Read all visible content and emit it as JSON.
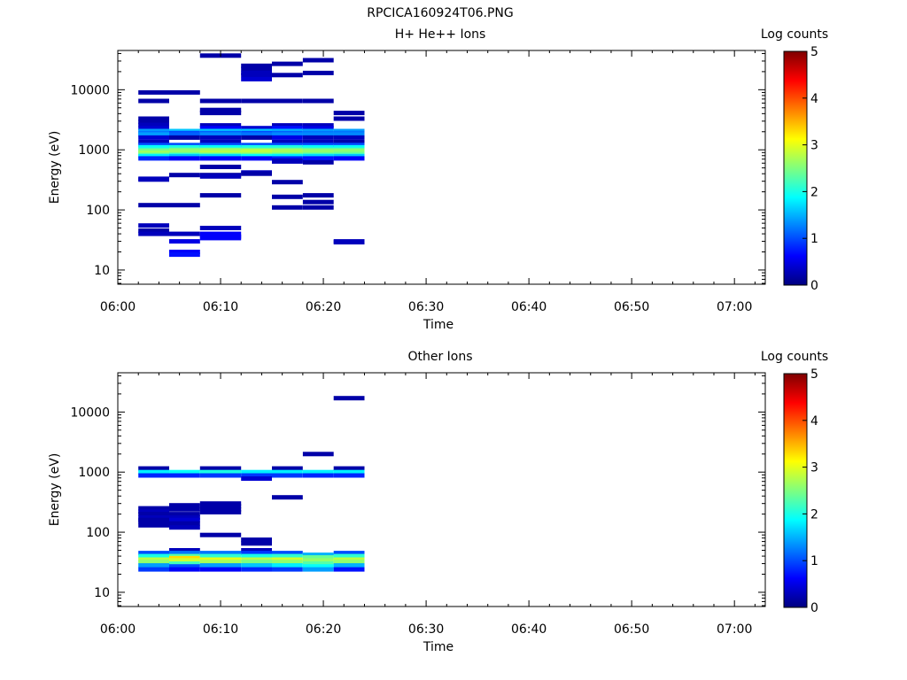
{
  "figure_title": "RPCICA160924T06.PNG",
  "colors": {
    "axis": "#000000",
    "background": "#ffffff"
  },
  "colormap": [
    "#00007f",
    "#0000ff",
    "#007fff",
    "#00ffff",
    "#7fff7f",
    "#ffff00",
    "#ff7f00",
    "#ff0000",
    "#7f0000"
  ],
  "chart_data": [
    {
      "type": "heatmap",
      "title": "H+ He++ Ions",
      "xlabel": "Time",
      "ylabel": "Energy (eV)",
      "yscale": "log",
      "ylim": [
        5.8,
        45000
      ],
      "xlim": [
        "06:00",
        "07:03"
      ],
      "xticks": [
        "06:00",
        "06:10",
        "06:20",
        "06:30",
        "06:40",
        "06:50",
        "07:00"
      ],
      "yticks": [
        {
          "value": 10,
          "label": "10"
        },
        {
          "value": 100,
          "label": "100"
        },
        {
          "value": 1000,
          "label": "1000"
        },
        {
          "value": 10000,
          "label": "10000"
        }
      ],
      "colorbar": {
        "label": "Log counts",
        "range": [
          0,
          5
        ],
        "ticks": [
          "0",
          "1",
          "2",
          "3",
          "4",
          "5"
        ]
      },
      "grid": false,
      "time_bins": [
        [
          "06:02",
          "06:05"
        ],
        [
          "06:05",
          "06:08"
        ],
        [
          "06:08",
          "06:12"
        ],
        [
          "06:12",
          "06:15"
        ],
        [
          "06:15",
          "06:18"
        ],
        [
          "06:18",
          "06:21"
        ],
        [
          "06:21",
          "06:24"
        ]
      ],
      "cells": [
        [
          0,
          9000,
          0.2
        ],
        [
          0,
          6500,
          0.2
        ],
        [
          0,
          3300,
          0.2
        ],
        [
          0,
          2900,
          0.2
        ],
        [
          0,
          2600,
          0.3
        ],
        [
          0,
          2300,
          0.4
        ],
        [
          0,
          2050,
          1.4
        ],
        [
          0,
          1900,
          1.2
        ],
        [
          0,
          1800,
          1.4
        ],
        [
          0,
          1600,
          0.4
        ],
        [
          0,
          1350,
          0.3
        ],
        [
          0,
          1200,
          1.0
        ],
        [
          0,
          1100,
          1.9
        ],
        [
          0,
          1000,
          2.2
        ],
        [
          0,
          950,
          2.5
        ],
        [
          0,
          880,
          2.7
        ],
        [
          0,
          820,
          2.3
        ],
        [
          0,
          780,
          1.8
        ],
        [
          0,
          720,
          0.8
        ],
        [
          0,
          330,
          0.3
        ],
        [
          0,
          320,
          0.3
        ],
        [
          0,
          120,
          0.2
        ],
        [
          0,
          55,
          0.3
        ],
        [
          0,
          45,
          0.2
        ],
        [
          0,
          40,
          0.3
        ],
        [
          1,
          9000,
          0.2
        ],
        [
          1,
          2050,
          1.6
        ],
        [
          1,
          1900,
          1.0
        ],
        [
          1,
          1800,
          1.1
        ],
        [
          1,
          1600,
          0.2
        ],
        [
          1,
          1200,
          1.0
        ],
        [
          1,
          1100,
          2.0
        ],
        [
          1,
          1000,
          2.4
        ],
        [
          1,
          950,
          2.6
        ],
        [
          1,
          880,
          2.6
        ],
        [
          1,
          820,
          2.1
        ],
        [
          1,
          780,
          1.6
        ],
        [
          1,
          720,
          0.6
        ],
        [
          1,
          380,
          0.2
        ],
        [
          1,
          120,
          0.2
        ],
        [
          1,
          40,
          0.3
        ],
        [
          1,
          30,
          0.5
        ],
        [
          1,
          20,
          0.6
        ],
        [
          1,
          18,
          0.7
        ],
        [
          2,
          37000,
          0.2
        ],
        [
          2,
          6500,
          0.2
        ],
        [
          2,
          4600,
          0.2
        ],
        [
          2,
          4100,
          0.2
        ],
        [
          2,
          2550,
          0.3
        ],
        [
          2,
          2300,
          0.6
        ],
        [
          2,
          2050,
          1.6
        ],
        [
          2,
          1900,
          1.1
        ],
        [
          2,
          1800,
          1.3
        ],
        [
          2,
          1600,
          0.3
        ],
        [
          2,
          1350,
          0.3
        ],
        [
          2,
          1200,
          1.0
        ],
        [
          2,
          1100,
          1.9
        ],
        [
          2,
          1000,
          2.5
        ],
        [
          2,
          950,
          2.7
        ],
        [
          2,
          880,
          2.8
        ],
        [
          2,
          820,
          2.3
        ],
        [
          2,
          780,
          1.7
        ],
        [
          2,
          720,
          0.6
        ],
        [
          2,
          520,
          0.2
        ],
        [
          2,
          380,
          0.2
        ],
        [
          2,
          360,
          0.3
        ],
        [
          2,
          175,
          0.2
        ],
        [
          2,
          50,
          0.3
        ],
        [
          2,
          40,
          0.6
        ],
        [
          2,
          36,
          0.6
        ],
        [
          2,
          34,
          0.6
        ],
        [
          3,
          25000,
          0.2
        ],
        [
          3,
          22000,
          0.2
        ],
        [
          3,
          19000,
          0.3
        ],
        [
          3,
          17500,
          0.3
        ],
        [
          3,
          15000,
          0.4
        ],
        [
          3,
          6500,
          0.2
        ],
        [
          3,
          2300,
          0.4
        ],
        [
          3,
          2050,
          1.6
        ],
        [
          3,
          1900,
          1.0
        ],
        [
          3,
          1800,
          1.2
        ],
        [
          3,
          1600,
          0.2
        ],
        [
          3,
          1200,
          1.0
        ],
        [
          3,
          1100,
          2.0
        ],
        [
          3,
          1000,
          2.4
        ],
        [
          3,
          950,
          2.8
        ],
        [
          3,
          880,
          2.8
        ],
        [
          3,
          820,
          2.4
        ],
        [
          3,
          780,
          1.9
        ],
        [
          3,
          720,
          0.6
        ],
        [
          3,
          420,
          0.3
        ],
        [
          3,
          400,
          0.2
        ],
        [
          4,
          27000,
          0.2
        ],
        [
          4,
          17500,
          0.2
        ],
        [
          4,
          6500,
          0.2
        ],
        [
          4,
          2550,
          0.3
        ],
        [
          4,
          2300,
          0.7
        ],
        [
          4,
          2050,
          1.5
        ],
        [
          4,
          1900,
          1.1
        ],
        [
          4,
          1800,
          1.3
        ],
        [
          4,
          1600,
          0.5
        ],
        [
          4,
          1350,
          0.3
        ],
        [
          4,
          1200,
          1.0
        ],
        [
          4,
          1100,
          2.0
        ],
        [
          4,
          1000,
          2.4
        ],
        [
          4,
          950,
          2.7
        ],
        [
          4,
          880,
          2.7
        ],
        [
          4,
          820,
          2.3
        ],
        [
          4,
          780,
          1.8
        ],
        [
          4,
          720,
          0.8
        ],
        [
          4,
          670,
          0.4
        ],
        [
          4,
          640,
          0.3
        ],
        [
          4,
          290,
          0.2
        ],
        [
          4,
          165,
          0.2
        ],
        [
          4,
          110,
          0.2
        ],
        [
          5,
          31000,
          0.2
        ],
        [
          5,
          19000,
          0.2
        ],
        [
          5,
          6500,
          0.2
        ],
        [
          5,
          2550,
          0.3
        ],
        [
          5,
          2300,
          0.5
        ],
        [
          5,
          2050,
          1.4
        ],
        [
          5,
          1900,
          1.2
        ],
        [
          5,
          1800,
          1.3
        ],
        [
          5,
          1600,
          0.3
        ],
        [
          5,
          1350,
          0.3
        ],
        [
          5,
          1200,
          1.0
        ],
        [
          5,
          1100,
          1.9
        ],
        [
          5,
          1000,
          2.3
        ],
        [
          5,
          950,
          2.6
        ],
        [
          5,
          880,
          2.6
        ],
        [
          5,
          820,
          2.2
        ],
        [
          5,
          780,
          1.7
        ],
        [
          5,
          720,
          0.7
        ],
        [
          5,
          620,
          0.2
        ],
        [
          5,
          175,
          0.2
        ],
        [
          5,
          135,
          0.2
        ],
        [
          5,
          110,
          0.2
        ],
        [
          6,
          4100,
          0.2
        ],
        [
          6,
          3300,
          0.2
        ],
        [
          6,
          2050,
          1.4
        ],
        [
          6,
          1900,
          1.2
        ],
        [
          6,
          1800,
          1.3
        ],
        [
          6,
          1600,
          0.3
        ],
        [
          6,
          1350,
          0.2
        ],
        [
          6,
          1200,
          1.0
        ],
        [
          6,
          1100,
          1.9
        ],
        [
          6,
          1000,
          2.3
        ],
        [
          6,
          950,
          2.6
        ],
        [
          6,
          880,
          2.5
        ],
        [
          6,
          820,
          2.2
        ],
        [
          6,
          780,
          1.6
        ],
        [
          6,
          720,
          0.6
        ],
        [
          6,
          30,
          0.3
        ],
        [
          6,
          29,
          0.3
        ]
      ]
    },
    {
      "type": "heatmap",
      "title": "Other Ions",
      "xlabel": "Time",
      "ylabel": "Energy (eV)",
      "yscale": "log",
      "ylim": [
        5.8,
        45000
      ],
      "xlim": [
        "06:00",
        "07:03"
      ],
      "xticks": [
        "06:00",
        "06:10",
        "06:20",
        "06:30",
        "06:40",
        "06:50",
        "07:00"
      ],
      "yticks": [
        {
          "value": 10,
          "label": "10"
        },
        {
          "value": 100,
          "label": "100"
        },
        {
          "value": 1000,
          "label": "1000"
        },
        {
          "value": 10000,
          "label": "10000"
        }
      ],
      "colorbar": {
        "label": "Log counts",
        "range": [
          0,
          5
        ],
        "ticks": [
          "0",
          "1",
          "2",
          "3",
          "4",
          "5"
        ]
      },
      "grid": false,
      "time_bins": [
        [
          "06:02",
          "06:05"
        ],
        [
          "06:05",
          "06:08"
        ],
        [
          "06:08",
          "06:12"
        ],
        [
          "06:12",
          "06:15"
        ],
        [
          "06:15",
          "06:18"
        ],
        [
          "06:18",
          "06:21"
        ],
        [
          "06:21",
          "06:24"
        ]
      ],
      "cells": [
        [
          0,
          1150,
          0.2
        ],
        [
          0,
          1000,
          1.8
        ],
        [
          0,
          880,
          0.8
        ],
        [
          0,
          250,
          0.2
        ],
        [
          0,
          220,
          0.3
        ],
        [
          0,
          200,
          0.2
        ],
        [
          0,
          175,
          0.3
        ],
        [
          0,
          160,
          0.2
        ],
        [
          0,
          150,
          0.2
        ],
        [
          0,
          130,
          0.2
        ],
        [
          0,
          45,
          1.0
        ],
        [
          0,
          40,
          2.0
        ],
        [
          0,
          35,
          2.8
        ],
        [
          0,
          32,
          2.6
        ],
        [
          0,
          28,
          1.4
        ],
        [
          0,
          24,
          0.9
        ],
        [
          1,
          1000,
          1.9
        ],
        [
          1,
          880,
          0.8
        ],
        [
          1,
          280,
          0.2
        ],
        [
          1,
          240,
          0.2
        ],
        [
          1,
          200,
          0.2
        ],
        [
          1,
          175,
          0.3
        ],
        [
          1,
          160,
          0.4
        ],
        [
          1,
          140,
          0.2
        ],
        [
          1,
          120,
          0.3
        ],
        [
          1,
          50,
          0.3
        ],
        [
          1,
          45,
          1.2
        ],
        [
          1,
          40,
          2.3
        ],
        [
          1,
          37,
          3.3
        ],
        [
          1,
          34,
          2.9
        ],
        [
          1,
          30,
          2.2
        ],
        [
          1,
          27,
          1.0
        ],
        [
          1,
          24,
          0.6
        ],
        [
          2,
          1150,
          0.2
        ],
        [
          2,
          1000,
          2.0
        ],
        [
          2,
          880,
          0.9
        ],
        [
          2,
          300,
          0.2
        ],
        [
          2,
          270,
          0.2
        ],
        [
          2,
          240,
          0.2
        ],
        [
          2,
          215,
          0.2
        ],
        [
          2,
          90,
          0.2
        ],
        [
          2,
          45,
          1.2
        ],
        [
          2,
          40,
          2.1
        ],
        [
          2,
          35,
          3.0
        ],
        [
          2,
          32,
          2.7
        ],
        [
          2,
          28,
          1.4
        ],
        [
          2,
          24,
          0.6
        ],
        [
          3,
          1000,
          1.8
        ],
        [
          3,
          880,
          0.9
        ],
        [
          3,
          780,
          0.4
        ],
        [
          3,
          75,
          0.2
        ],
        [
          3,
          65,
          0.2
        ],
        [
          3,
          50,
          0.3
        ],
        [
          3,
          45,
          0.9
        ],
        [
          3,
          40,
          2.0
        ],
        [
          3,
          35,
          2.8
        ],
        [
          3,
          32,
          2.5
        ],
        [
          3,
          28,
          1.6
        ],
        [
          3,
          24,
          0.8
        ],
        [
          4,
          1150,
          0.2
        ],
        [
          4,
          1000,
          1.8
        ],
        [
          4,
          880,
          0.9
        ],
        [
          4,
          380,
          0.2
        ],
        [
          4,
          45,
          1.0
        ],
        [
          4,
          40,
          2.1
        ],
        [
          4,
          35,
          2.9
        ],
        [
          4,
          32,
          2.6
        ],
        [
          4,
          28,
          1.8
        ],
        [
          4,
          24,
          0.9
        ],
        [
          5,
          2000,
          0.2
        ],
        [
          5,
          1000,
          1.8
        ],
        [
          5,
          880,
          0.8
        ],
        [
          5,
          42,
          1.5
        ],
        [
          5,
          38,
          2.4
        ],
        [
          5,
          34,
          2.6
        ],
        [
          5,
          30,
          2.3
        ],
        [
          5,
          27,
          1.9
        ],
        [
          5,
          24,
          1.4
        ],
        [
          6,
          17000,
          0.2
        ],
        [
          6,
          1150,
          0.2
        ],
        [
          6,
          1000,
          1.8
        ],
        [
          6,
          880,
          0.8
        ],
        [
          6,
          45,
          1.0
        ],
        [
          6,
          40,
          2.1
        ],
        [
          6,
          35,
          2.8
        ],
        [
          6,
          32,
          2.6
        ],
        [
          6,
          28,
          1.5
        ],
        [
          6,
          24,
          0.7
        ]
      ]
    }
  ]
}
